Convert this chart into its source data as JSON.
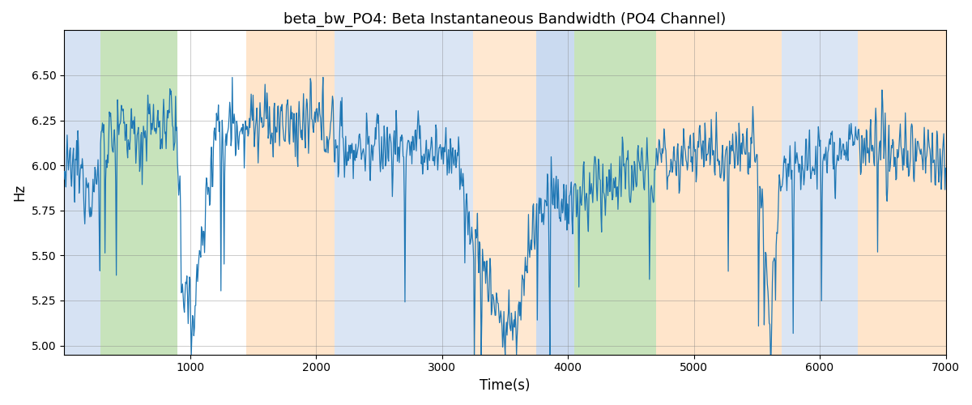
{
  "title": "beta_bw_PO4: Beta Instantaneous Bandwidth (PO4 Channel)",
  "xlabel": "Time(s)",
  "ylabel": "Hz",
  "xlim": [
    0,
    7000
  ],
  "ylim": [
    4.95,
    6.75
  ],
  "yticks": [
    5.0,
    5.25,
    5.5,
    5.75,
    6.0,
    6.25,
    6.5
  ],
  "xticks": [
    1000,
    2000,
    3000,
    4000,
    5000,
    6000,
    7000
  ],
  "line_color": "#1f77b4",
  "line_width": 0.9,
  "background_color": "#ffffff",
  "bands": [
    {
      "xmin": 0,
      "xmax": 290,
      "color": "#aec7e8",
      "alpha": 0.5
    },
    {
      "xmin": 290,
      "xmax": 900,
      "color": "#90c878",
      "alpha": 0.5
    },
    {
      "xmin": 1450,
      "xmax": 2150,
      "color": "#ffcc99",
      "alpha": 0.5
    },
    {
      "xmin": 2150,
      "xmax": 3250,
      "color": "#aec7e8",
      "alpha": 0.45
    },
    {
      "xmin": 3250,
      "xmax": 3750,
      "color": "#ffcc99",
      "alpha": 0.45
    },
    {
      "xmin": 3750,
      "xmax": 4050,
      "color": "#aec7e8",
      "alpha": 0.65
    },
    {
      "xmin": 4050,
      "xmax": 4700,
      "color": "#90c878",
      "alpha": 0.5
    },
    {
      "xmin": 4700,
      "xmax": 5700,
      "color": "#ffcc99",
      "alpha": 0.5
    },
    {
      "xmin": 5700,
      "xmax": 6300,
      "color": "#aec7e8",
      "alpha": 0.45
    },
    {
      "xmin": 6300,
      "xmax": 7100,
      "color": "#ffcc99",
      "alpha": 0.5
    }
  ],
  "figsize": [
    12.0,
    5.0
  ],
  "dpi": 100
}
